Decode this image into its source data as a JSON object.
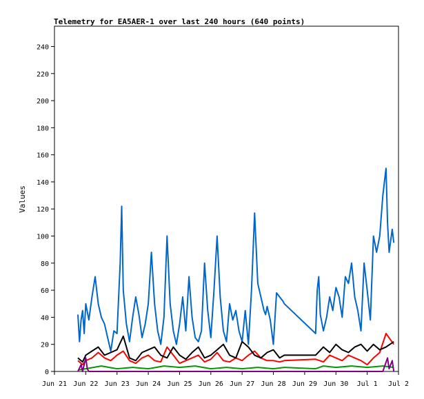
{
  "chart_data": {
    "type": "line",
    "title": "Telemetry for EA5AER-1 over last 240 hours (640 points)",
    "ylabel": "Values",
    "xlabel": "",
    "ylim": [
      0,
      255
    ],
    "xlim": [
      0,
      11
    ],
    "y_ticks": [
      0,
      20,
      40,
      60,
      80,
      100,
      120,
      140,
      160,
      180,
      200,
      220,
      240
    ],
    "x_ticks": [
      {
        "label": "Jun 21",
        "x": 0
      },
      {
        "label": "Jun 22",
        "x": 1
      },
      {
        "label": "Jun 23",
        "x": 2
      },
      {
        "label": "Jun 24",
        "x": 3
      },
      {
        "label": "Jun 25",
        "x": 4
      },
      {
        "label": "Jun 26",
        "x": 5
      },
      {
        "label": "Jun 27",
        "x": 6
      },
      {
        "label": "Jun 28",
        "x": 7
      },
      {
        "label": "Jun 29",
        "x": 8
      },
      {
        "label": "Jun 30",
        "x": 9
      },
      {
        "label": "Jul 1",
        "x": 10
      },
      {
        "label": "Jul 2",
        "x": 11
      }
    ],
    "grid": false,
    "series": [
      {
        "color": "#0066cc",
        "x": [
          0.75,
          0.8,
          0.85,
          0.9,
          0.95,
          1.0,
          1.1,
          1.2,
          1.3,
          1.4,
          1.5,
          1.6,
          1.7,
          1.8,
          1.9,
          2.0,
          2.1,
          2.15,
          2.2,
          2.3,
          2.4,
          2.5,
          2.6,
          2.7,
          2.8,
          2.9,
          3.0,
          3.1,
          3.2,
          3.3,
          3.4,
          3.5,
          3.6,
          3.7,
          3.8,
          3.9,
          4.0,
          4.1,
          4.2,
          4.3,
          4.4,
          4.5,
          4.6,
          4.7,
          4.8,
          4.9,
          5.0,
          5.1,
          5.2,
          5.3,
          5.4,
          5.5,
          5.6,
          5.7,
          5.8,
          5.9,
          6.0,
          6.1,
          6.2,
          6.3,
          6.4,
          6.5,
          6.6,
          6.7,
          6.75,
          6.8,
          6.9,
          7.0,
          7.1,
          7.2,
          7.3,
          7.35,
          8.35,
          8.4,
          8.45,
          8.5,
          8.6,
          8.7,
          8.8,
          8.9,
          9.0,
          9.1,
          9.2,
          9.3,
          9.4,
          9.5,
          9.6,
          9.7,
          9.8,
          9.9,
          10.0,
          10.1,
          10.2,
          10.3,
          10.4,
          10.5,
          10.6,
          10.65,
          10.7,
          10.8,
          10.85
        ],
        "values": [
          42,
          22,
          38,
          45,
          28,
          50,
          38,
          55,
          70,
          50,
          40,
          35,
          25,
          15,
          30,
          28,
          80,
          122,
          60,
          35,
          22,
          40,
          55,
          42,
          25,
          35,
          50,
          88,
          50,
          30,
          20,
          40,
          100,
          50,
          30,
          20,
          35,
          55,
          30,
          70,
          40,
          25,
          22,
          30,
          80,
          45,
          25,
          60,
          100,
          55,
          30,
          22,
          50,
          38,
          45,
          30,
          22,
          45,
          20,
          60,
          117,
          65,
          55,
          45,
          42,
          48,
          38,
          20,
          58,
          55,
          52,
          50,
          28,
          60,
          70,
          42,
          30,
          40,
          55,
          45,
          62,
          55,
          40,
          70,
          65,
          80,
          55,
          45,
          30,
          80,
          60,
          38,
          100,
          88,
          100,
          130,
          150,
          110,
          88,
          105,
          95
        ]
      },
      {
        "color": "#ff0000",
        "x": [
          0.75,
          0.9,
          1.0,
          1.2,
          1.4,
          1.6,
          1.8,
          2.0,
          2.2,
          2.4,
          2.6,
          2.8,
          3.0,
          3.2,
          3.4,
          3.6,
          3.8,
          4.0,
          4.2,
          4.4,
          4.6,
          4.8,
          5.0,
          5.2,
          5.4,
          5.6,
          5.8,
          6.0,
          6.2,
          6.4,
          6.6,
          6.8,
          7.0,
          7.2,
          7.35,
          8.35,
          8.6,
          8.8,
          9.0,
          9.2,
          9.4,
          9.6,
          9.8,
          10.0,
          10.2,
          10.4,
          10.6,
          10.85
        ],
        "values": [
          8,
          5,
          8,
          10,
          14,
          10,
          8,
          12,
          15,
          8,
          6,
          10,
          12,
          8,
          7,
          18,
          12,
          6,
          8,
          10,
          12,
          7,
          9,
          14,
          8,
          7,
          10,
          8,
          12,
          15,
          10,
          8,
          8,
          7,
          8,
          9,
          7,
          12,
          10,
          8,
          12,
          10,
          8,
          5,
          10,
          14,
          28,
          20
        ]
      },
      {
        "color": "#000000",
        "x": [
          0.75,
          0.9,
          1.0,
          1.2,
          1.4,
          1.6,
          1.8,
          2.0,
          2.2,
          2.4,
          2.6,
          2.8,
          3.0,
          3.2,
          3.4,
          3.6,
          3.8,
          4.0,
          4.2,
          4.4,
          4.6,
          4.8,
          5.0,
          5.2,
          5.4,
          5.6,
          5.8,
          6.0,
          6.2,
          6.4,
          6.6,
          6.8,
          7.0,
          7.2,
          7.35,
          8.35,
          8.6,
          8.8,
          9.0,
          9.2,
          9.4,
          9.6,
          9.8,
          10.0,
          10.2,
          10.4,
          10.6,
          10.85
        ],
        "values": [
          10,
          7,
          12,
          15,
          18,
          12,
          14,
          16,
          26,
          10,
          8,
          14,
          16,
          18,
          12,
          10,
          18,
          12,
          9,
          14,
          18,
          10,
          12,
          16,
          20,
          12,
          10,
          22,
          18,
          12,
          10,
          14,
          16,
          10,
          12,
          12,
          18,
          14,
          20,
          16,
          14,
          18,
          20,
          15,
          20,
          16,
          18,
          22
        ]
      },
      {
        "color": "#009900",
        "x": [
          0.75,
          1.0,
          1.5,
          2.0,
          2.5,
          3.0,
          3.5,
          4.0,
          4.5,
          5.0,
          5.5,
          6.0,
          6.5,
          7.0,
          7.35,
          8.35,
          8.6,
          9.0,
          9.5,
          10.0,
          10.5,
          10.85
        ],
        "values": [
          1,
          2,
          4,
          2,
          3,
          2,
          4,
          3,
          4,
          2,
          3,
          2,
          3,
          2,
          3,
          2,
          4,
          3,
          4,
          3,
          4,
          3
        ]
      },
      {
        "color": "#800080",
        "x": [
          0.75,
          0.85,
          0.9,
          1.0,
          1.05,
          1.1,
          1.3,
          2.0,
          3.0,
          4.0,
          5.0,
          6.0,
          7.0,
          7.35,
          8.35,
          9.0,
          10.0,
          10.5,
          10.65,
          10.7,
          10.8,
          10.85
        ],
        "values": [
          0,
          5,
          0,
          10,
          2,
          0,
          0,
          0,
          0,
          0,
          0,
          0,
          0,
          0,
          0,
          0,
          0,
          0,
          10,
          2,
          8,
          0
        ]
      }
    ]
  }
}
